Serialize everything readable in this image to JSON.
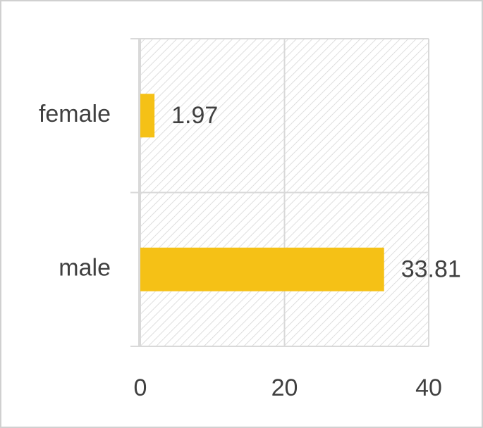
{
  "chart_data": {
    "type": "hbar",
    "categories": [
      "female",
      "male"
    ],
    "values": [
      1.97,
      33.81
    ],
    "color": "#f5c116",
    "xlim": [
      0,
      40
    ],
    "xticks": [
      0,
      20,
      40
    ],
    "grid": true
  }
}
